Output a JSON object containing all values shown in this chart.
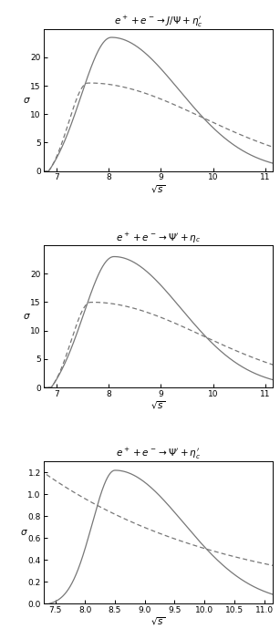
{
  "plot1_title": "$e^+ + e^- \\rightarrow J/\\Psi + \\eta_c^{\\prime}$",
  "plot2_title": "$e^+ + e^- \\rightarrow \\Psi^{\\prime} + \\eta_c$",
  "plot3_title": "$e^+ + e^- \\rightarrow \\Psi^{\\prime} + \\eta_c^{\\prime}$",
  "xlabel": "$\\sqrt{s}$",
  "ylabel": "$\\sigma$",
  "plot1_xlim": [
    6.75,
    11.15
  ],
  "plot1_ylim": [
    0,
    25
  ],
  "plot1_xticks": [
    7,
    8,
    9,
    10,
    11
  ],
  "plot1_yticks": [
    0,
    5,
    10,
    15,
    20
  ],
  "plot2_xlim": [
    6.75,
    11.15
  ],
  "plot2_ylim": [
    0,
    25
  ],
  "plot2_xticks": [
    7,
    8,
    9,
    10,
    11
  ],
  "plot2_yticks": [
    0,
    5,
    10,
    15,
    20
  ],
  "plot3_xlim": [
    7.3,
    11.15
  ],
  "plot3_ylim": [
    0,
    1.3
  ],
  "plot3_xticks": [
    7.5,
    8.0,
    8.5,
    9.0,
    9.5,
    10.0,
    10.5,
    11.0
  ],
  "plot3_yticks": [
    0,
    0.2,
    0.4,
    0.6,
    0.8,
    1.0,
    1.2
  ],
  "solid_color": "#777777",
  "dashed_color": "#777777",
  "background": "#ffffff"
}
